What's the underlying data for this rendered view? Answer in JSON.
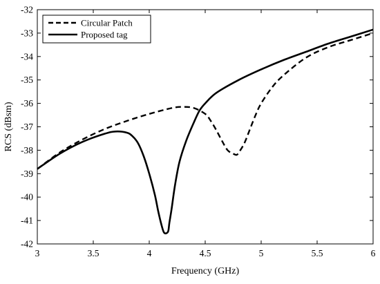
{
  "chart_data": {
    "type": "line",
    "title": "",
    "xlabel": "Frequency (GHz)",
    "ylabel": "RCS (dBsm)",
    "xlim": [
      3,
      6
    ],
    "ylim": [
      -42,
      -32
    ],
    "xticks": [
      3,
      3.5,
      4,
      4.5,
      5,
      5.5,
      6
    ],
    "xtick_labels": [
      "3",
      "3.5",
      "4",
      "4.5",
      "5",
      "5.5",
      "6"
    ],
    "yticks": [
      -42,
      -41,
      -40,
      -39,
      -38,
      -37,
      -36,
      -35,
      -34,
      -33,
      -32
    ],
    "ytick_labels": [
      "-42",
      "-41",
      "-40",
      "-39",
      "-38",
      "-37",
      "-36",
      "-35",
      "-34",
      "-33",
      "-32"
    ],
    "grid": false,
    "legend_position": "top-left",
    "series": [
      {
        "name": "Circular Patch",
        "style": "dashed",
        "color": "#000000",
        "x": [
          3.0,
          3.2,
          3.4,
          3.6,
          3.8,
          4.0,
          4.2,
          4.3,
          4.4,
          4.5,
          4.55,
          4.6,
          4.65,
          4.7,
          4.75,
          4.78,
          4.8,
          4.85,
          4.9,
          4.95,
          5.0,
          5.1,
          5.2,
          5.4,
          5.6,
          5.8,
          6.0
        ],
        "y": [
          -38.8,
          -38.1,
          -37.55,
          -37.1,
          -36.75,
          -36.45,
          -36.2,
          -36.15,
          -36.2,
          -36.45,
          -36.75,
          -37.15,
          -37.6,
          -38.0,
          -38.15,
          -38.2,
          -38.1,
          -37.7,
          -37.1,
          -36.5,
          -36.0,
          -35.3,
          -34.8,
          -34.05,
          -33.6,
          -33.3,
          -33.0
        ]
      },
      {
        "name": "Proposed tag",
        "style": "solid",
        "color": "#000000",
        "x": [
          3.0,
          3.2,
          3.4,
          3.6,
          3.7,
          3.8,
          3.85,
          3.9,
          3.95,
          4.0,
          4.05,
          4.08,
          4.11,
          4.13,
          4.15,
          4.17,
          4.18,
          4.2,
          4.23,
          4.27,
          4.33,
          4.4,
          4.45,
          4.5,
          4.6,
          4.8,
          5.0,
          5.2,
          5.4,
          5.6,
          5.8,
          6.0
        ],
        "y": [
          -38.8,
          -38.15,
          -37.65,
          -37.3,
          -37.2,
          -37.25,
          -37.4,
          -37.7,
          -38.25,
          -39.0,
          -39.9,
          -40.6,
          -41.2,
          -41.5,
          -41.55,
          -41.45,
          -41.1,
          -40.5,
          -39.5,
          -38.5,
          -37.6,
          -36.8,
          -36.3,
          -36.0,
          -35.55,
          -35.0,
          -34.55,
          -34.15,
          -33.8,
          -33.45,
          -33.15,
          -32.85
        ]
      }
    ]
  }
}
